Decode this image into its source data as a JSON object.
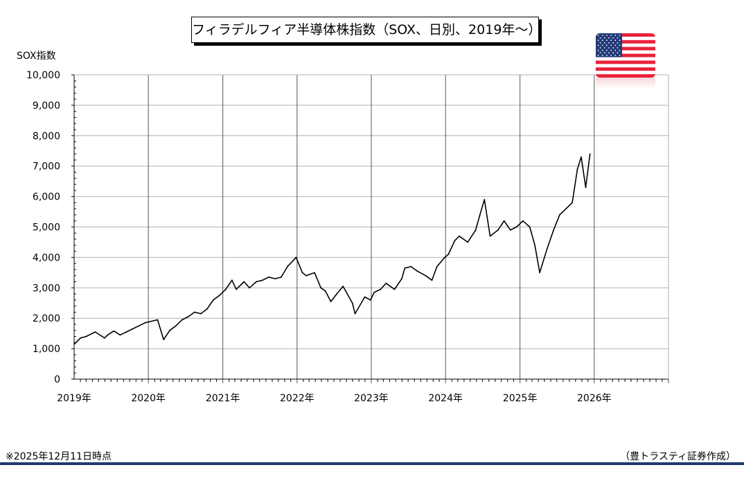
{
  "chart_data": {
    "type": "line",
    "title": "フィラデルフィア半導体株指数（SOX、日別、2019年～）",
    "ylabel": "SOX指数",
    "ylim": [
      0,
      10000
    ],
    "xlim": [
      "2019-01-01",
      "2027-01-01"
    ],
    "grid": true,
    "yticks": [
      "0",
      "1,000",
      "2,000",
      "3,000",
      "4,000",
      "5,000",
      "6,000",
      "7,000",
      "8,000",
      "9,000",
      "10,000"
    ],
    "xticks": [
      "2019年",
      "2020年",
      "2021年",
      "2022年",
      "2023年",
      "2024年",
      "2025年",
      "2026年"
    ],
    "series_color": "#000000",
    "points": [
      [
        "2019-01-02",
        1150
      ],
      [
        "2019-02-01",
        1350
      ],
      [
        "2019-03-01",
        1400
      ],
      [
        "2019-04-15",
        1550
      ],
      [
        "2019-05-31",
        1350
      ],
      [
        "2019-06-15",
        1450
      ],
      [
        "2019-07-15",
        1580
      ],
      [
        "2019-08-15",
        1450
      ],
      [
        "2019-09-15",
        1550
      ],
      [
        "2019-10-15",
        1650
      ],
      [
        "2019-11-15",
        1750
      ],
      [
        "2019-12-15",
        1850
      ],
      [
        "2020-01-15",
        1900
      ],
      [
        "2020-02-15",
        1950
      ],
      [
        "2020-03-16",
        1300
      ],
      [
        "2020-04-15",
        1600
      ],
      [
        "2020-05-15",
        1750
      ],
      [
        "2020-06-15",
        1950
      ],
      [
        "2020-07-15",
        2050
      ],
      [
        "2020-08-15",
        2200
      ],
      [
        "2020-09-15",
        2150
      ],
      [
        "2020-10-15",
        2300
      ],
      [
        "2020-11-15",
        2600
      ],
      [
        "2020-12-15",
        2750
      ],
      [
        "2021-01-15",
        2950
      ],
      [
        "2021-02-15",
        3250
      ],
      [
        "2021-03-08",
        2950
      ],
      [
        "2021-04-15",
        3200
      ],
      [
        "2021-05-12",
        3000
      ],
      [
        "2021-06-15",
        3200
      ],
      [
        "2021-07-15",
        3250
      ],
      [
        "2021-08-15",
        3350
      ],
      [
        "2021-09-15",
        3300
      ],
      [
        "2021-10-15",
        3350
      ],
      [
        "2021-11-15",
        3700
      ],
      [
        "2021-12-27",
        4000
      ],
      [
        "2022-01-27",
        3500
      ],
      [
        "2022-02-15",
        3400
      ],
      [
        "2022-03-28",
        3500
      ],
      [
        "2022-04-28",
        3000
      ],
      [
        "2022-05-20",
        2900
      ],
      [
        "2022-06-16",
        2550
      ],
      [
        "2022-07-15",
        2800
      ],
      [
        "2022-08-15",
        3050
      ],
      [
        "2022-09-30",
        2500
      ],
      [
        "2022-10-13",
        2150
      ],
      [
        "2022-11-30",
        2700
      ],
      [
        "2022-12-28",
        2600
      ],
      [
        "2023-01-15",
        2850
      ],
      [
        "2023-02-15",
        2950
      ],
      [
        "2023-03-15",
        3150
      ],
      [
        "2023-04-25",
        2950
      ],
      [
        "2023-05-31",
        3300
      ],
      [
        "2023-06-15",
        3650
      ],
      [
        "2023-07-15",
        3700
      ],
      [
        "2023-08-15",
        3550
      ],
      [
        "2023-09-25",
        3400
      ],
      [
        "2023-10-26",
        3250
      ],
      [
        "2023-11-20",
        3700
      ],
      [
        "2023-12-28",
        4000
      ],
      [
        "2024-01-15",
        4100
      ],
      [
        "2024-02-15",
        4550
      ],
      [
        "2024-03-08",
        4700
      ],
      [
        "2024-04-19",
        4500
      ],
      [
        "2024-05-28",
        4900
      ],
      [
        "2024-06-18",
        5400
      ],
      [
        "2024-07-10",
        5900
      ],
      [
        "2024-08-07",
        4700
      ],
      [
        "2024-09-15",
        4900
      ],
      [
        "2024-10-15",
        5200
      ],
      [
        "2024-11-15",
        4900
      ],
      [
        "2024-12-15",
        5000
      ],
      [
        "2025-01-15",
        5200
      ],
      [
        "2025-02-18",
        5000
      ],
      [
        "2025-03-15",
        4400
      ],
      [
        "2025-04-08",
        3500
      ],
      [
        "2025-05-15",
        4300
      ],
      [
        "2025-06-15",
        4900
      ],
      [
        "2025-07-15",
        5400
      ],
      [
        "2025-08-15",
        5600
      ],
      [
        "2025-09-15",
        5800
      ],
      [
        "2025-10-10",
        6900
      ],
      [
        "2025-10-29",
        7300
      ],
      [
        "2025-11-20",
        6300
      ],
      [
        "2025-12-11",
        7400
      ]
    ]
  },
  "footer": {
    "note": "※2025年12月11日時点",
    "source": "（豊トラスティ証券作成）"
  },
  "flag": {
    "icon": "us-flag-icon",
    "red": "#e8213a",
    "blue": "#233a78"
  }
}
